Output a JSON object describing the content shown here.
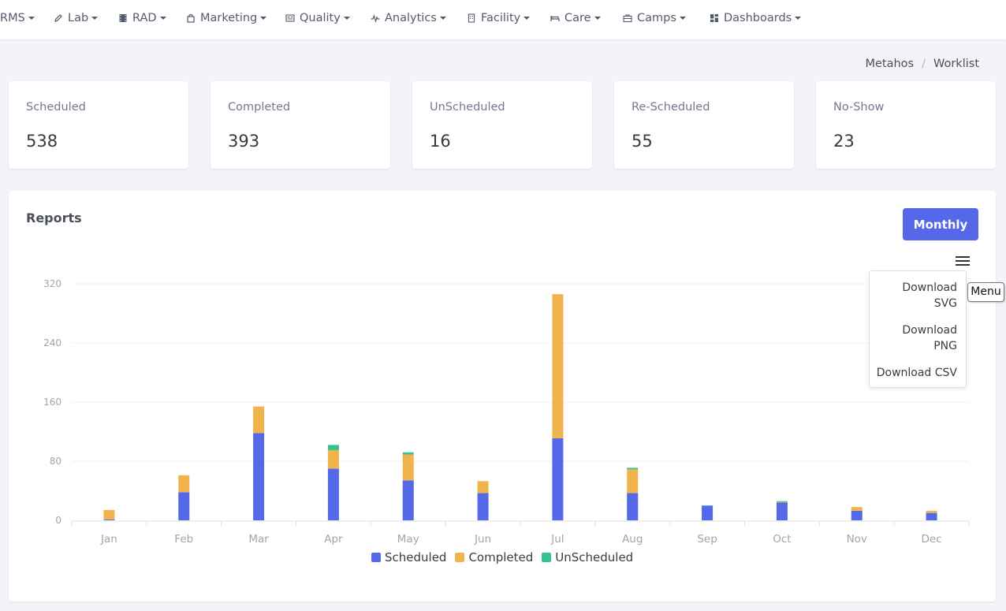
{
  "nav": [
    {
      "label": "RMS",
      "icon": "none"
    },
    {
      "label": "Lab",
      "icon": "pencil-icon"
    },
    {
      "label": "RAD",
      "icon": "film-icon"
    },
    {
      "label": "Marketing",
      "icon": "bag-icon"
    },
    {
      "label": "Quality",
      "icon": "id-card-icon"
    },
    {
      "label": "Analytics",
      "icon": "pulse-icon"
    },
    {
      "label": "Facility",
      "icon": "building-icon"
    },
    {
      "label": "Care",
      "icon": "bed-icon"
    },
    {
      "label": "Camps",
      "icon": "briefcase-icon"
    },
    {
      "label": "Dashboards",
      "icon": "grid-icon"
    }
  ],
  "breadcrumb": {
    "parent": "Metahos",
    "separator": "/",
    "current": "Worklist"
  },
  "stats": [
    {
      "label": "Scheduled",
      "value": "538"
    },
    {
      "label": "Completed",
      "value": "393"
    },
    {
      "label": "UnScheduled",
      "value": "16"
    },
    {
      "label": "Re-Scheduled",
      "value": "55"
    },
    {
      "label": "No-Show",
      "value": "23"
    }
  ],
  "reports": {
    "title": "Reports",
    "period_button": "Monthly",
    "export_menu": {
      "items": [
        {
          "line1": "Download",
          "line2": "SVG"
        },
        {
          "line1": "Download",
          "line2": "PNG"
        },
        {
          "line1": "Download CSV",
          "line2": ""
        }
      ],
      "tooltip": "Menu"
    }
  },
  "colors": {
    "scheduled": "#5468e8",
    "completed": "#f1b44c",
    "unscheduled": "#34c38f",
    "accent": "#5468e8"
  },
  "chart_data": {
    "type": "bar",
    "stacked": true,
    "categories": [
      "Jan",
      "Feb",
      "Mar",
      "Apr",
      "May",
      "Jun",
      "Jul",
      "Aug",
      "Sep",
      "Oct",
      "Nov",
      "Dec"
    ],
    "series": [
      {
        "name": "Scheduled",
        "values": [
          1,
          38,
          118,
          70,
          54,
          37,
          111,
          37,
          20,
          24,
          13,
          10
        ]
      },
      {
        "name": "Completed",
        "values": [
          13,
          23,
          36,
          25,
          35,
          16,
          195,
          32,
          0,
          1,
          5,
          3
        ]
      },
      {
        "name": "UnScheduled",
        "values": [
          0,
          0,
          0,
          7,
          3,
          0,
          0,
          2,
          0,
          1,
          0,
          0
        ]
      }
    ],
    "yticks": [
      "0",
      "80",
      "160",
      "240",
      "320"
    ],
    "ylim": [
      0,
      320
    ],
    "grid": true,
    "legend_position": "bottom"
  }
}
